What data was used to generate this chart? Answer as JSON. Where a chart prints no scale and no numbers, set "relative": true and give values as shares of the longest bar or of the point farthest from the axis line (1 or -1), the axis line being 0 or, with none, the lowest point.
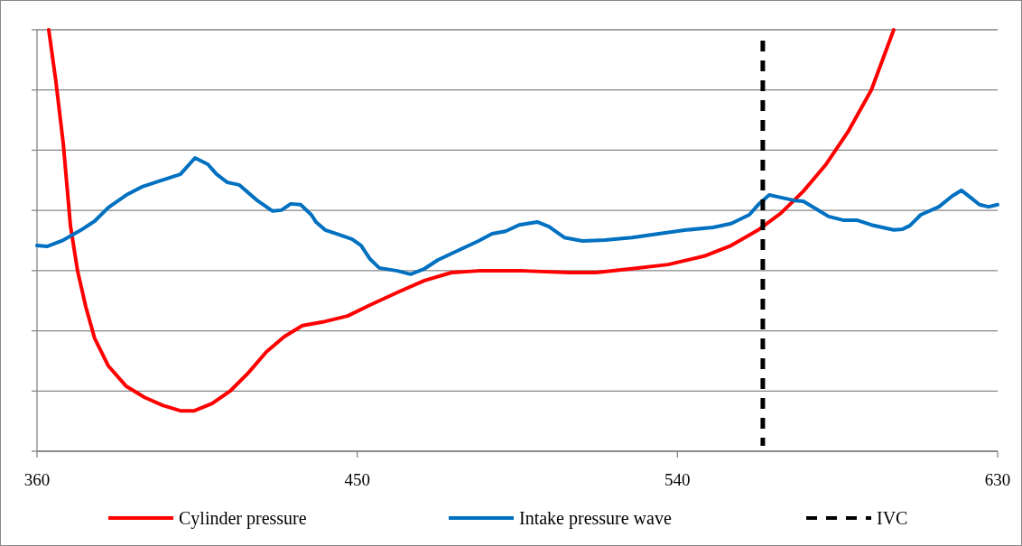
{
  "chart_data": {
    "type": "line",
    "relative": true,
    "xlim": [
      360,
      630
    ],
    "xticks": [
      360,
      450,
      540,
      630
    ],
    "grid": true,
    "legend": "bottom",
    "line_style": "solid",
    "series": [
      {
        "name": "Cylinder pressure",
        "color": "#ff0000",
        "x": [
          363.3,
          365.3,
          367.4,
          369.4,
          371.4,
          373.7,
          376.2,
          380.0,
          385.1,
          390.2,
          395.3,
          400.3,
          404.2,
          409.2,
          414.3,
          419.4,
          424.5,
          429.5,
          434.6,
          441.0,
          447.3,
          453.6,
          461.3,
          468.9,
          476.5,
          484.1,
          496.8,
          509.5,
          517.1,
          527.2,
          537.4,
          547.5,
          555.1,
          562.7,
          569.1,
          575.4,
          581.8,
          588.1,
          594.5,
          600.8
        ],
        "values": [
          1.0,
          0.878,
          0.728,
          0.535,
          0.428,
          0.343,
          0.268,
          0.203,
          0.154,
          0.128,
          0.109,
          0.096,
          0.096,
          0.113,
          0.143,
          0.186,
          0.236,
          0.272,
          0.298,
          0.308,
          0.321,
          0.347,
          0.377,
          0.405,
          0.424,
          0.428,
          0.428,
          0.424,
          0.424,
          0.433,
          0.443,
          0.463,
          0.488,
          0.525,
          0.565,
          0.617,
          0.681,
          0.76,
          0.857,
          1.0
        ]
      },
      {
        "name": "Intake pressure wave",
        "color": "#0070c0",
        "x": [
          360,
          362.8,
          367.4,
          372.4,
          376.2,
          380.0,
          385.1,
          389.4,
          394.0,
          400.3,
          404.4,
          408.0,
          410.5,
          413.5,
          416.8,
          421.9,
          426.2,
          428.7,
          431.3,
          434.1,
          437.1,
          438.4,
          441.0,
          444.8,
          448.6,
          451.1,
          453.6,
          456.2,
          461.3,
          465.0,
          468.9,
          472.7,
          476.5,
          480.3,
          484.1,
          487.9,
          491.7,
          495.5,
          500.6,
          503.9,
          508.2,
          513.3,
          519.6,
          527.2,
          534.8,
          542.4,
          550.0,
          555.1,
          560.2,
          562.7,
          565.8,
          569.1,
          572.9,
          575.4,
          579.2,
          582.5,
          586.8,
          590.6,
          594.5,
          600.8,
          603.3,
          605.3,
          608.4,
          613.5,
          617.3,
          619.8,
          622.4,
          624.9,
          627.5,
          630
        ],
        "values": [
          0.488,
          0.486,
          0.501,
          0.525,
          0.546,
          0.578,
          0.608,
          0.627,
          0.64,
          0.657,
          0.696,
          0.681,
          0.657,
          0.638,
          0.632,
          0.595,
          0.57,
          0.572,
          0.587,
          0.585,
          0.561,
          0.544,
          0.525,
          0.514,
          0.503,
          0.488,
          0.456,
          0.435,
          0.428,
          0.42,
          0.433,
          0.454,
          0.469,
          0.484,
          0.499,
          0.516,
          0.522,
          0.537,
          0.544,
          0.533,
          0.507,
          0.499,
          0.501,
          0.507,
          0.516,
          0.525,
          0.531,
          0.54,
          0.561,
          0.585,
          0.608,
          0.602,
          0.595,
          0.593,
          0.574,
          0.557,
          0.548,
          0.548,
          0.537,
          0.525,
          0.527,
          0.535,
          0.561,
          0.58,
          0.606,
          0.619,
          0.602,
          0.585,
          0.58,
          0.585
        ]
      }
    ],
    "ref_lines": [
      {
        "axis": "x",
        "value": 564,
        "label": "IVC",
        "color": "#000000",
        "line_style": "dashed"
      }
    ]
  }
}
